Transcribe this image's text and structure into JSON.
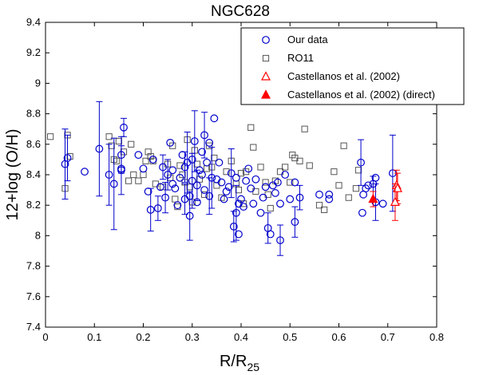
{
  "chart_data": {
    "type": "scatter",
    "title": "NGC628",
    "xlabel": "R/R",
    "xlabel_sub": "25",
    "ylabel": "12+log (O/H)",
    "xlim": [
      0,
      0.8
    ],
    "ylim": [
      7.4,
      9.4
    ],
    "xticks": [
      "0",
      "0.1",
      "0.2",
      "0.3",
      "0.4",
      "0.5",
      "0.6",
      "0.7",
      "0.8"
    ],
    "yticks": [
      "7.4",
      "7.6",
      "7.8",
      "8",
      "8.2",
      "8.4",
      "8.6",
      "8.8",
      "9",
      "9.2",
      "9.4"
    ],
    "legend_position": "top-right",
    "series": [
      {
        "name": "Our data",
        "marker": "circle-open",
        "color": "#0000cc",
        "points": [
          [
            0.04,
            8.47,
            0.23
          ],
          [
            0.045,
            8.51,
            0.15
          ],
          [
            0.08,
            8.42,
            0.0
          ],
          [
            0.11,
            8.57,
            0.31
          ],
          [
            0.13,
            8.4,
            0.2
          ],
          [
            0.155,
            8.44,
            0.0
          ],
          [
            0.155,
            8.53,
            0.12
          ],
          [
            0.16,
            8.71,
            0.06
          ],
          [
            0.14,
            8.34,
            0.3
          ],
          [
            0.155,
            8.43,
            0.16
          ],
          [
            0.19,
            8.53,
            0.0
          ],
          [
            0.2,
            8.44,
            0.0
          ],
          [
            0.21,
            8.29,
            0.0
          ],
          [
            0.215,
            8.17,
            0.14
          ],
          [
            0.22,
            8.5,
            0.0
          ],
          [
            0.23,
            8.18,
            0.08
          ],
          [
            0.235,
            8.32,
            0.0
          ],
          [
            0.24,
            8.45,
            0.08
          ],
          [
            0.245,
            8.25,
            0.1
          ],
          [
            0.25,
            8.4,
            0.1
          ],
          [
            0.255,
            8.61,
            0.0
          ],
          [
            0.26,
            8.43,
            0.0
          ],
          [
            0.26,
            8.34,
            0.0
          ],
          [
            0.265,
            8.31,
            0.0
          ],
          [
            0.27,
            8.2,
            0.0
          ],
          [
            0.275,
            8.38,
            0.0
          ],
          [
            0.28,
            8.53,
            0.0
          ],
          [
            0.285,
            8.45,
            0.1
          ],
          [
            0.285,
            8.24,
            0.1
          ],
          [
            0.29,
            8.48,
            0.2
          ],
          [
            0.295,
            8.13,
            0.16
          ],
          [
            0.295,
            8.26,
            0.0
          ],
          [
            0.3,
            8.36,
            0.18
          ],
          [
            0.3,
            8.5,
            0.0
          ],
          [
            0.305,
            8.62,
            0.2
          ],
          [
            0.31,
            8.33,
            0.1
          ],
          [
            0.31,
            8.22,
            0.0
          ],
          [
            0.315,
            8.43,
            0.0
          ],
          [
            0.32,
            8.55,
            0.0
          ],
          [
            0.32,
            8.4,
            0.0
          ],
          [
            0.325,
            8.66,
            0.15
          ],
          [
            0.325,
            8.3,
            0.0
          ],
          [
            0.33,
            8.48,
            0.0
          ],
          [
            0.335,
            8.26,
            0.12
          ],
          [
            0.335,
            8.61,
            0.0
          ],
          [
            0.34,
            8.38,
            0.2
          ],
          [
            0.345,
            8.77,
            0.0
          ],
          [
            0.35,
            8.37,
            0.0
          ],
          [
            0.355,
            8.48,
            0.0
          ],
          [
            0.36,
            8.35,
            0.0
          ],
          [
            0.365,
            8.24,
            0.0
          ],
          [
            0.37,
            8.29,
            0.0
          ],
          [
            0.375,
            8.32,
            0.0
          ],
          [
            0.38,
            8.41,
            0.16
          ],
          [
            0.385,
            8.06,
            0.1
          ],
          [
            0.39,
            8.15,
            0.18
          ],
          [
            0.39,
            8.38,
            0.0
          ],
          [
            0.395,
            8.21,
            0.0
          ],
          [
            0.395,
            8.01,
            0.0
          ],
          [
            0.4,
            8.24,
            0.0
          ],
          [
            0.405,
            8.19,
            0.0
          ],
          [
            0.41,
            8.36,
            0.0
          ],
          [
            0.415,
            8.44,
            0.0
          ],
          [
            0.42,
            8.31,
            0.0
          ],
          [
            0.425,
            8.21,
            0.0
          ],
          [
            0.43,
            8.37,
            0.0
          ],
          [
            0.44,
            8.15,
            0.0
          ],
          [
            0.445,
            8.25,
            0.0
          ],
          [
            0.45,
            8.32,
            0.0
          ],
          [
            0.455,
            8.05,
            0.1
          ],
          [
            0.46,
            8.01,
            0.0
          ],
          [
            0.465,
            8.33,
            0.0
          ],
          [
            0.47,
            8.28,
            0.0
          ],
          [
            0.475,
            8.35,
            0.0
          ],
          [
            0.48,
            7.97,
            0.1
          ],
          [
            0.48,
            8.21,
            0.0
          ],
          [
            0.49,
            8.4,
            0.0
          ],
          [
            0.5,
            8.24,
            0.0
          ],
          [
            0.51,
            8.09,
            0.1
          ],
          [
            0.51,
            8.35,
            0.0
          ],
          [
            0.52,
            8.25,
            0.08
          ],
          [
            0.56,
            8.27,
            0.0
          ],
          [
            0.58,
            8.27,
            0.0
          ],
          [
            0.58,
            8.24,
            0.0
          ],
          [
            0.645,
            8.48,
            0.15
          ],
          [
            0.648,
            8.15,
            0.0
          ],
          [
            0.65,
            8.27,
            0.0
          ],
          [
            0.655,
            8.31,
            0.0
          ],
          [
            0.66,
            8.33,
            0.0
          ],
          [
            0.67,
            8.34,
            0.05
          ],
          [
            0.675,
            8.38,
            0.0
          ],
          [
            0.675,
            8.22,
            0.12
          ],
          [
            0.69,
            8.21,
            0.0
          ],
          [
            0.71,
            8.41,
            0.25
          ]
        ]
      },
      {
        "name": "RO11",
        "marker": "square-open",
        "color": "#555555",
        "points": [
          [
            0.01,
            8.65
          ],
          [
            0.04,
            8.31
          ],
          [
            0.045,
            8.66
          ],
          [
            0.05,
            8.52
          ],
          [
            0.13,
            8.65
          ],
          [
            0.135,
            8.59
          ],
          [
            0.14,
            8.5
          ],
          [
            0.145,
            8.49
          ],
          [
            0.15,
            8.62
          ],
          [
            0.16,
            8.55
          ],
          [
            0.17,
            8.36
          ],
          [
            0.175,
            8.6
          ],
          [
            0.18,
            8.4
          ],
          [
            0.19,
            8.36
          ],
          [
            0.2,
            8.4
          ],
          [
            0.205,
            8.49
          ],
          [
            0.21,
            8.55
          ],
          [
            0.215,
            8.52
          ],
          [
            0.22,
            8.49
          ],
          [
            0.225,
            8.34
          ],
          [
            0.24,
            8.32
          ],
          [
            0.25,
            8.47
          ],
          [
            0.255,
            8.38
          ],
          [
            0.26,
            8.59
          ],
          [
            0.265,
            8.24
          ],
          [
            0.27,
            8.19
          ],
          [
            0.275,
            8.46
          ],
          [
            0.28,
            8.4
          ],
          [
            0.285,
            8.35
          ],
          [
            0.29,
            8.63
          ],
          [
            0.295,
            8.32
          ],
          [
            0.3,
            8.22
          ],
          [
            0.305,
            8.56
          ],
          [
            0.31,
            8.47
          ],
          [
            0.315,
            8.37
          ],
          [
            0.325,
            8.27
          ],
          [
            0.33,
            8.44
          ],
          [
            0.335,
            8.59
          ],
          [
            0.34,
            8.45
          ],
          [
            0.345,
            8.51
          ],
          [
            0.35,
            8.33
          ],
          [
            0.36,
            8.25
          ],
          [
            0.37,
            8.42
          ],
          [
            0.38,
            8.49
          ],
          [
            0.39,
            8.34
          ],
          [
            0.395,
            8.3
          ],
          [
            0.4,
            8.41
          ],
          [
            0.405,
            8.21
          ],
          [
            0.41,
            8.42
          ],
          [
            0.42,
            8.71
          ],
          [
            0.425,
            8.58
          ],
          [
            0.43,
            8.29
          ],
          [
            0.44,
            8.45
          ],
          [
            0.45,
            8.35
          ],
          [
            0.455,
            8.27
          ],
          [
            0.46,
            8.18
          ],
          [
            0.47,
            8.36
          ],
          [
            0.48,
            8.42
          ],
          [
            0.49,
            8.45
          ],
          [
            0.5,
            8.35
          ],
          [
            0.505,
            8.53
          ],
          [
            0.51,
            8.51
          ],
          [
            0.52,
            8.49
          ],
          [
            0.53,
            8.7
          ],
          [
            0.54,
            8.46
          ],
          [
            0.56,
            8.2
          ],
          [
            0.57,
            8.17
          ],
          [
            0.59,
            8.42
          ],
          [
            0.6,
            8.33
          ],
          [
            0.61,
            8.59
          ],
          [
            0.62,
            8.25
          ],
          [
            0.635,
            8.31
          ],
          [
            0.64,
            8.43
          ]
        ]
      },
      {
        "name": "Castellanos et al. (2002)",
        "marker": "triangle-open",
        "color": "#ff0000",
        "points": [
          [
            0.718,
            8.33,
            0.1
          ],
          [
            0.72,
            8.31,
            0.1
          ],
          [
            0.715,
            8.22,
            0.12
          ]
        ]
      },
      {
        "name": "Castellanos et al. (2002) (direct)",
        "marker": "triangle-filled",
        "color": "#ff0000",
        "points": [
          [
            0.67,
            8.24,
            0.05
          ]
        ]
      }
    ]
  }
}
